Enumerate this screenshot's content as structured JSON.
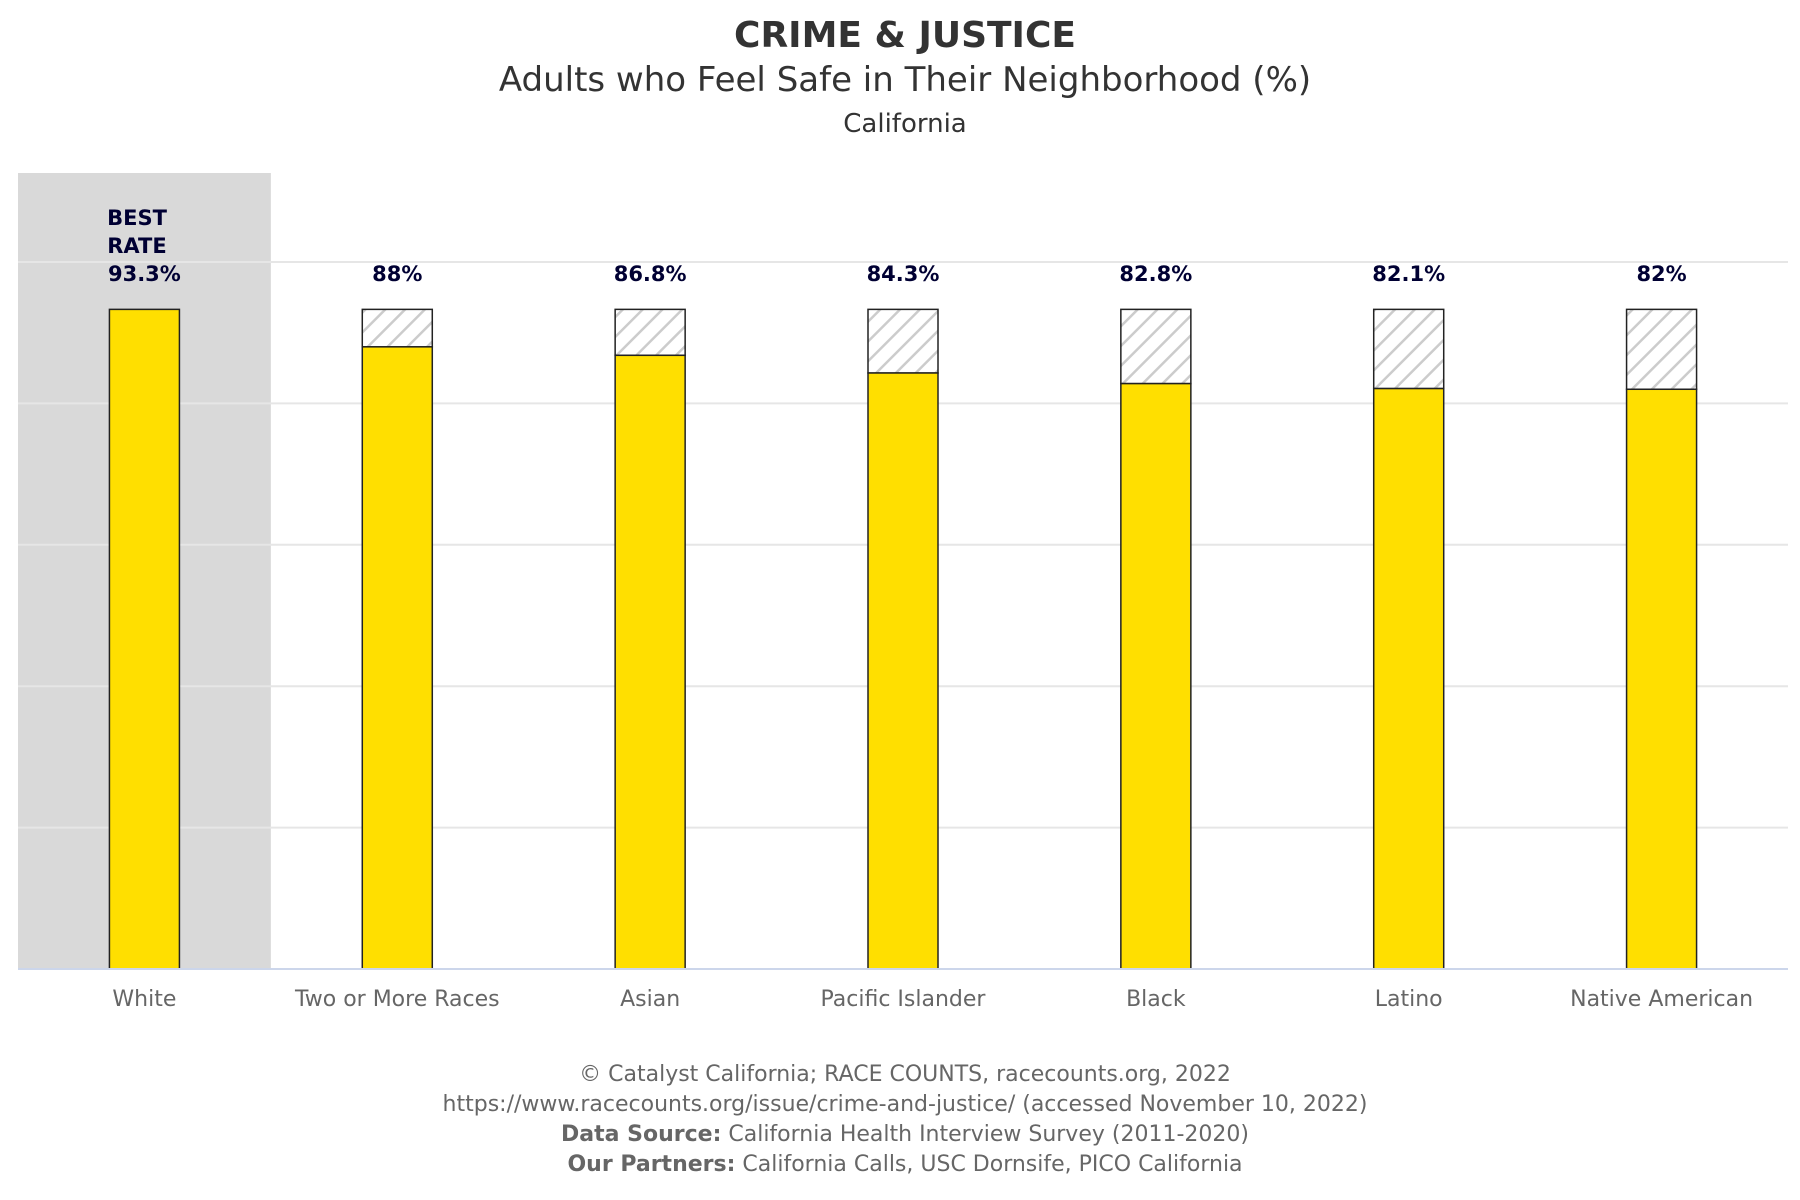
{
  "chart_data": {
    "type": "bar",
    "title": "CRIME & JUSTICE",
    "subtitle": "Adults who Feel Safe in Their Neighborhood (%)",
    "geography": "California",
    "categories": [
      "White",
      "Two or More Races",
      "Asian",
      "Pacific Islander",
      "Black",
      "Latino",
      "Native American"
    ],
    "values": [
      93.3,
      88,
      86.8,
      84.3,
      82.8,
      82.1,
      82
    ],
    "value_labels": [
      "93.3%",
      "88%",
      "86.8%",
      "84.3%",
      "82.8%",
      "82.1%",
      "82%"
    ],
    "best_rate_label": [
      "BEST",
      "RATE"
    ],
    "best_rate_category": "White",
    "best_rate_value": 93.3,
    "gap_to_best_shown": true,
    "ylim": [
      0,
      100
    ],
    "y_axis_labels_shown": false,
    "grid": true,
    "colors": {
      "bar": "#FFDF00",
      "bar_border": "#222222",
      "gap_hatch": "#CCCCCC",
      "best_highlight": "#D9D9D9",
      "gridline": "#E6E6E6",
      "axis_line": "#CCD6EB"
    }
  },
  "credits": {
    "line1": "© Catalyst California; RACE COUNTS, racecounts.org, 2022",
    "line2": "https://www.racecounts.org/issue/crime-and-justice/ (accessed November 10, 2022)",
    "source_label": "Data Source:",
    "source_value": " California Health Interview Survey (2011-2020)",
    "partners_label": "Our Partners:",
    "partners_value": " California Calls, USC Dornsife, PICO California"
  }
}
